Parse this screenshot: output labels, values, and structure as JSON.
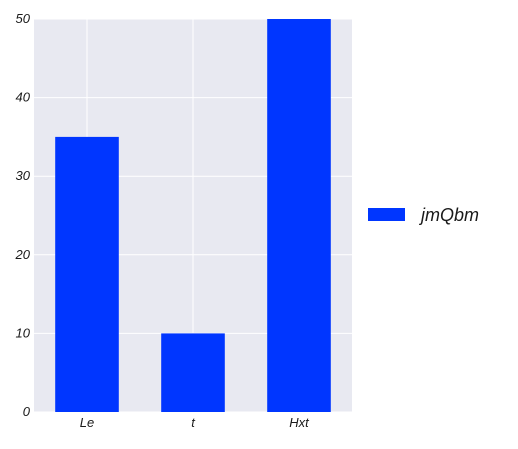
{
  "chart_data": {
    "type": "bar",
    "title": "",
    "xlabel": "",
    "ylabel": "",
    "categories": [
      "Le",
      "t",
      "Hxt"
    ],
    "series": [
      {
        "name": "jmQbm",
        "values": [
          35,
          10,
          50
        ],
        "color": "#0036ff"
      }
    ],
    "ylim": [
      0,
      50
    ],
    "yticks": [
      "0",
      "10",
      "20",
      "30",
      "40",
      "50"
    ],
    "ytick_values": [
      0,
      10,
      20,
      30,
      40,
      50
    ],
    "grid": true,
    "legend_placement": "right",
    "background_color": "#e8e9f1",
    "grid_color": "#ffffff"
  }
}
